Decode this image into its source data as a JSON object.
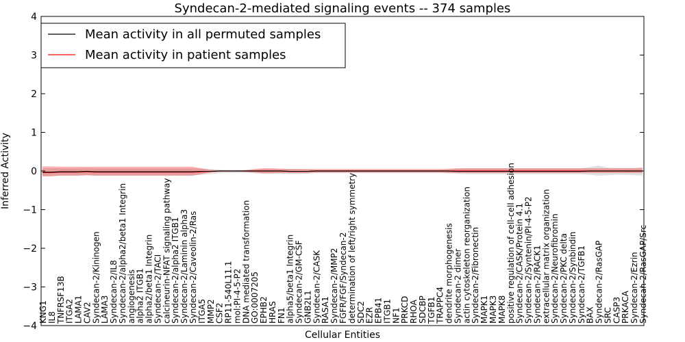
{
  "chart_data": {
    "type": "line",
    "title": "Syndecan-2-mediated signaling events -- 374 samples",
    "xlabel": "Cellular Entities",
    "ylabel": "Inferred Activity",
    "ylim": [
      -4,
      4
    ],
    "yticks": [
      -4,
      -3,
      -2,
      -1,
      0,
      1,
      2,
      3,
      4
    ],
    "ytick_labels": [
      "−4",
      "−3",
      "−2",
      "−1",
      "0",
      "1",
      "2",
      "3",
      "4"
    ],
    "legend_location": "top-left",
    "categories": [
      "KNG1",
      "IL8",
      "TNFRSF13B",
      "ITGA2",
      "LAMA1",
      "CAV2",
      "Syndecan-2/Kininogen",
      "LAMA3",
      "Syndecan-2/IL8",
      "Syndecan-2/alpha2/beta1 Integrin",
      "angiogenesis",
      "alpha2 ITGB1",
      "alpha2/beta1 Integrin",
      "Syndecan-2/TACI",
      "calcineurin-NFAT signaling pathway",
      "Syndecan-2/alpha2 ITGB1",
      "Syndecan-2/Laminin alpha3",
      "Syndecan-2/Caveolin-2/Ras",
      "ITGA5",
      "MMP2",
      "CSF2",
      "RP11-540L11.1",
      "mol:PI-4-5-P2",
      "DNA mediated transformation",
      "GO:0007205",
      "EPHB2",
      "HRAS",
      "FN1",
      "alpha5/beta1 Integrin",
      "Syndecan-2/GM-CSF",
      "GNB2L1",
      "Syndecan-2/CASK",
      "RASA1",
      "Syndecan-2/MMP2",
      "FGFR/FGF/Syndecan-2",
      "determination of left/right symmetry",
      "SDC2",
      "EZR",
      "EPB41",
      "ITGB1",
      "NF1",
      "PRKCD",
      "RHOA",
      "SDCBP",
      "TGFB1",
      "TRAPPC4",
      "dendrite morphogenesis",
      "Syndecan-2 dimer",
      "actin cytoskeleton reorganization",
      "Syndecan-2/Fibronectin",
      "MAPK1",
      "MAPK3",
      "MAPK8",
      "positive regulation of cell-cell adhesion",
      "Syndecan-2/CASK/Protein 4.1",
      "Syndecan-2/Syntenin/PI-4-5-P2",
      "Syndecan-2/RACK1",
      "extracellular matrix organization",
      "Syndecan-2/Neurofibromin",
      "Syndecan-2/PKC delta",
      "Syndecan-2/Synbindin",
      "Syndecan-2/TGFB1",
      "BAX",
      "Syndecan-2/RasGAP",
      "SRC",
      "CASP3",
      "PRKACA",
      "Syndecan-2/Ezrin",
      "Syndecan-2/RasGAP/Src"
    ],
    "series": [
      {
        "name": "Mean activity in all permuted samples",
        "color": "#000000",
        "values": [
          -0.03,
          -0.03,
          -0.02,
          -0.02,
          -0.02,
          -0.01,
          -0.02,
          -0.02,
          -0.02,
          -0.02,
          -0.02,
          -0.02,
          -0.02,
          -0.02,
          -0.02,
          -0.02,
          -0.02,
          -0.02,
          -0.01,
          -0.01,
          0,
          0,
          0,
          0,
          0,
          0,
          0,
          0,
          -0.01,
          -0.01,
          -0.01,
          0,
          0,
          0,
          0,
          0,
          0,
          0,
          0,
          0,
          0,
          0,
          0,
          0,
          0,
          0,
          0,
          -0.01,
          -0.01,
          -0.01,
          -0.01,
          -0.01,
          -0.01,
          -0.01,
          -0.01,
          -0.01,
          -0.01,
          -0.01,
          -0.01,
          -0.01,
          -0.01,
          -0.01,
          0,
          0,
          0,
          0,
          0,
          0,
          0
        ],
        "band_low": [
          -0.13,
          -0.13,
          -0.12,
          -0.12,
          -0.12,
          -0.11,
          -0.12,
          -0.12,
          -0.12,
          -0.12,
          -0.12,
          -0.12,
          -0.12,
          -0.12,
          -0.12,
          -0.12,
          -0.12,
          -0.12,
          -0.1,
          -0.08,
          -0.06,
          -0.05,
          -0.05,
          -0.05,
          -0.06,
          -0.07,
          -0.07,
          -0.07,
          -0.08,
          -0.08,
          -0.07,
          -0.05,
          -0.05,
          -0.05,
          -0.05,
          -0.05,
          -0.05,
          -0.05,
          -0.05,
          -0.05,
          -0.05,
          -0.05,
          -0.05,
          -0.05,
          -0.05,
          -0.05,
          -0.06,
          -0.07,
          -0.08,
          -0.08,
          -0.08,
          -0.08,
          -0.08,
          -0.08,
          -0.08,
          -0.08,
          -0.08,
          -0.08,
          -0.08,
          -0.08,
          -0.08,
          -0.08,
          -0.1,
          -0.12,
          -0.11,
          -0.1,
          -0.1,
          -0.11,
          -0.12
        ],
        "band_high": [
          0.07,
          0.07,
          0.07,
          0.07,
          0.07,
          0.08,
          0.07,
          0.07,
          0.07,
          0.07,
          0.07,
          0.07,
          0.07,
          0.07,
          0.07,
          0.07,
          0.07,
          0.07,
          0.06,
          0.05,
          0.04,
          0.03,
          0.03,
          0.03,
          0.04,
          0.05,
          0.05,
          0.05,
          0.05,
          0.05,
          0.04,
          0.03,
          0.03,
          0.03,
          0.03,
          0.03,
          0.03,
          0.03,
          0.03,
          0.03,
          0.03,
          0.03,
          0.03,
          0.03,
          0.03,
          0.03,
          0.04,
          0.06,
          0.07,
          0.07,
          0.07,
          0.07,
          0.07,
          0.07,
          0.07,
          0.07,
          0.07,
          0.07,
          0.07,
          0.07,
          0.07,
          0.07,
          0.1,
          0.14,
          0.09,
          0.08,
          0.08,
          0.08,
          0.09
        ]
      },
      {
        "name": "Mean activity in patient samples",
        "color": "#ff0000",
        "values": [
          -0.04,
          -0.04,
          -0.03,
          -0.03,
          -0.03,
          -0.02,
          -0.03,
          -0.03,
          -0.03,
          -0.03,
          -0.03,
          -0.03,
          -0.03,
          -0.03,
          -0.03,
          -0.03,
          -0.03,
          -0.03,
          -0.02,
          -0.01,
          0,
          0,
          0,
          0,
          0,
          0,
          0,
          0,
          -0.01,
          -0.01,
          -0.01,
          0,
          0,
          0,
          0,
          0,
          0,
          0,
          0,
          0,
          0,
          0,
          0,
          0,
          0,
          0,
          0,
          0,
          0,
          0,
          0,
          0,
          0,
          0,
          0,
          0,
          0,
          0,
          0,
          0,
          0,
          0,
          0,
          0,
          0,
          0,
          0,
          0,
          0
        ],
        "band_low": [
          -0.14,
          -0.14,
          -0.12,
          -0.12,
          -0.12,
          -0.11,
          -0.12,
          -0.12,
          -0.12,
          -0.12,
          -0.12,
          -0.12,
          -0.12,
          -0.12,
          -0.12,
          -0.12,
          -0.12,
          -0.12,
          -0.08,
          -0.04,
          -0.02,
          -0.01,
          -0.01,
          -0.02,
          -0.04,
          -0.06,
          -0.06,
          -0.05,
          -0.05,
          -0.05,
          -0.05,
          -0.04,
          -0.04,
          -0.04,
          -0.04,
          -0.04,
          -0.04,
          -0.04,
          -0.04,
          -0.04,
          -0.04,
          -0.04,
          -0.04,
          -0.04,
          -0.04,
          -0.04,
          -0.05,
          -0.05,
          -0.05,
          -0.05,
          -0.05,
          -0.05,
          -0.05,
          -0.05,
          -0.05,
          -0.05,
          -0.05,
          -0.05,
          -0.05,
          -0.05,
          -0.05,
          -0.05,
          -0.05,
          -0.05,
          -0.05,
          -0.05,
          -0.05,
          -0.05,
          -0.05
        ],
        "band_high": [
          0.12,
          0.12,
          0.11,
          0.11,
          0.11,
          0.11,
          0.11,
          0.11,
          0.11,
          0.11,
          0.11,
          0.11,
          0.11,
          0.11,
          0.11,
          0.11,
          0.11,
          0.11,
          0.07,
          0.03,
          0.01,
          0.01,
          0.01,
          0.02,
          0.05,
          0.07,
          0.07,
          0.06,
          0.05,
          0.05,
          0.05,
          0.05,
          0.05,
          0.05,
          0.05,
          0.05,
          0.05,
          0.05,
          0.05,
          0.05,
          0.05,
          0.05,
          0.05,
          0.05,
          0.05,
          0.05,
          0.06,
          0.07,
          0.07,
          0.07,
          0.07,
          0.07,
          0.07,
          0.07,
          0.07,
          0.07,
          0.07,
          0.07,
          0.07,
          0.07,
          0.07,
          0.07,
          0.07,
          0.07,
          0.07,
          0.07,
          0.07,
          0.07,
          0.08
        ]
      }
    ]
  }
}
